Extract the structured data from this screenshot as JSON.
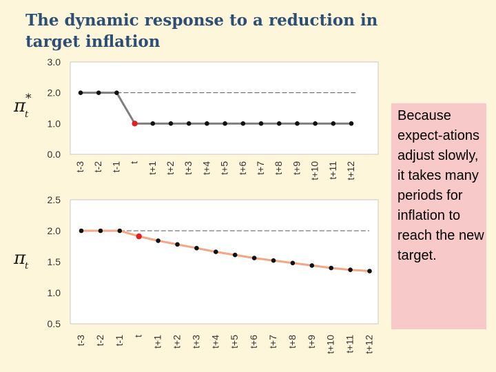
{
  "title": "The dynamic response to a reduction in target inflation",
  "callout_text": "Because expect-ations adjust slowly, it takes many periods for inflation to reach the new target.",
  "colors": {
    "background": "#fdf6da",
    "title": "#2d4f76",
    "target_line": "#7f7f7f",
    "inflation_line": "#f4a582",
    "highlight_point": "#e02020",
    "callout_bg": "#f7c9c9"
  },
  "chart_data": [
    {
      "type": "line",
      "ylabel_symbol": "π",
      "ylabel_subscript": "t",
      "ylabel_superscript": "*",
      "categories": [
        "t-3",
        "t-2",
        "t-1",
        "t",
        "t+1",
        "t+2",
        "t+3",
        "t+4",
        "t+5",
        "t+6",
        "t+7",
        "t+8",
        "t+9",
        "t+10",
        "t+11",
        "t+12"
      ],
      "values": [
        2.0,
        2.0,
        2.0,
        1.0,
        1.0,
        1.0,
        1.0,
        1.0,
        1.0,
        1.0,
        1.0,
        1.0,
        1.0,
        1.0,
        1.0,
        1.0
      ],
      "highlight_index": 3,
      "yticks": [
        "3.0",
        "2.0",
        "1.0",
        "0.0"
      ],
      "ylim": [
        0,
        3
      ],
      "reference_line": 2.0,
      "grid": false
    },
    {
      "type": "line",
      "ylabel_symbol": "π",
      "ylabel_subscript": "t",
      "ylabel_superscript": "",
      "categories": [
        "t-3",
        "t-2",
        "t-1",
        "t",
        "t+1",
        "t+2",
        "t+3",
        "t+4",
        "t+5",
        "t+6",
        "t+7",
        "t+8",
        "t+9",
        "t+10",
        "t+11",
        "t+12"
      ],
      "values": [
        2.0,
        2.0,
        2.0,
        1.91,
        1.84,
        1.78,
        1.72,
        1.66,
        1.61,
        1.56,
        1.52,
        1.48,
        1.44,
        1.4,
        1.37,
        1.35
      ],
      "highlight_index": 3,
      "yticks": [
        "2.5",
        "2.0",
        "1.5",
        "1.0",
        "0.5"
      ],
      "ylim": [
        0.5,
        2.5
      ],
      "reference_line": 2.0,
      "grid": false
    }
  ]
}
